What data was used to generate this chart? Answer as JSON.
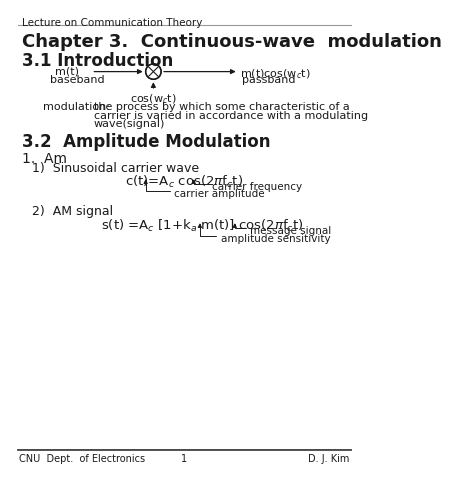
{
  "bg_color": "#ffffff",
  "header_text": "Lecture on Communication Theory",
  "header_fontsize": 7.5,
  "chapter_title": "Chapter 3.  Continuous-wave  modulation",
  "chapter_fontsize": 13,
  "section31": "3.1 Introduction",
  "section31_fontsize": 12,
  "section32": "3.2  Amplitude Modulation",
  "section32_fontsize": 12,
  "section1am": "1.  Am",
  "section1am_fontsize": 10,
  "item1": "1)  Sinusoidal carrier wave",
  "item1_fontsize": 9,
  "item2": "2)  AM signal",
  "item2_fontsize": 9,
  "footer_left": "CNU  Dept.  of Electronics",
  "footer_center": "1",
  "footer_right": "D. J. Kim",
  "footer_fontsize": 7,
  "text_color": "#1a1a1a",
  "gray_line": "#999999"
}
